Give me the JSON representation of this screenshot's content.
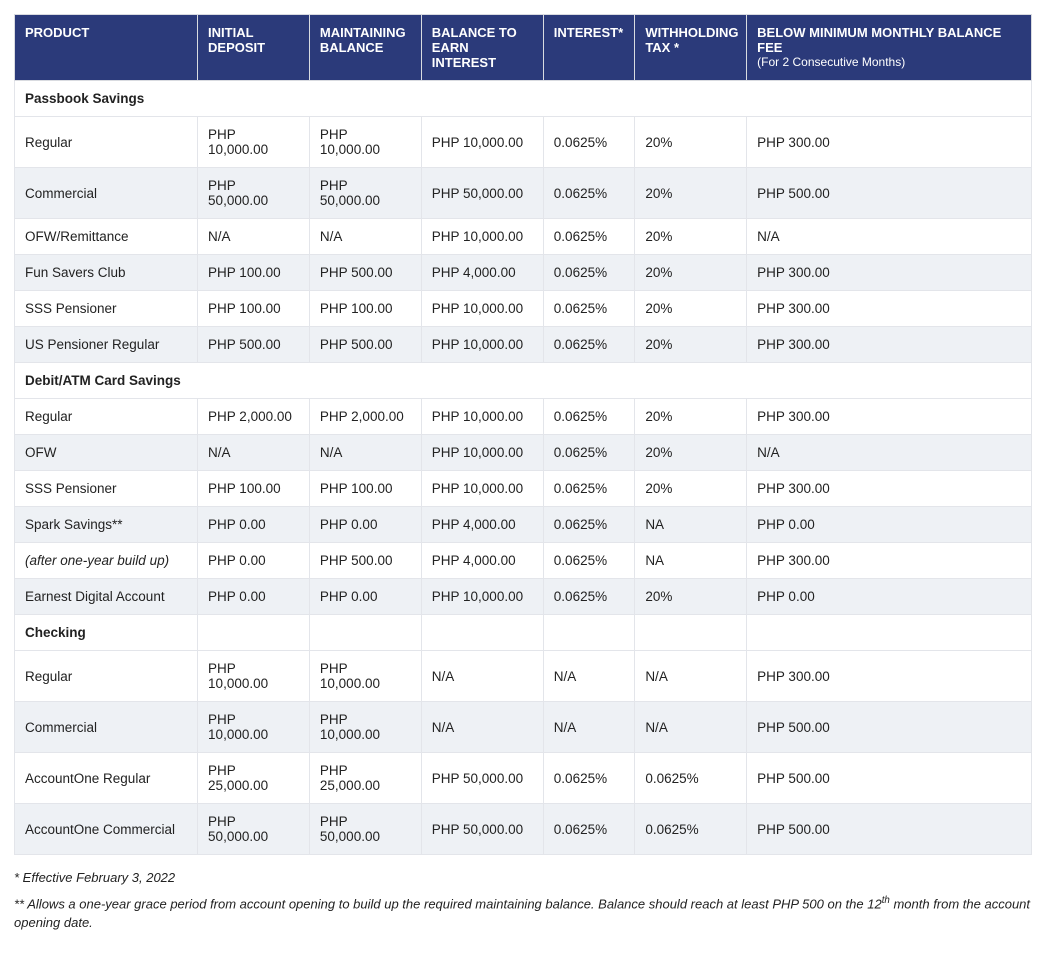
{
  "table": {
    "columns": [
      {
        "label": "PRODUCT",
        "sub": "",
        "width": "18%"
      },
      {
        "label": "INITIAL DEPOSIT",
        "sub": "",
        "width": "11%"
      },
      {
        "label": "MAINTAINING BALANCE",
        "sub": "",
        "width": "11%"
      },
      {
        "label": "BALANCE TO EARN INTEREST",
        "sub": "",
        "width": "12%"
      },
      {
        "label": "INTEREST*",
        "sub": "",
        "width": "9%"
      },
      {
        "label": "WITHHOLDING TAX *",
        "sub": "",
        "width": "11%"
      },
      {
        "label": "BELOW MINIMUM MONTHLY BALANCE FEE",
        "sub": "(For 2 Consecutive Months)",
        "width": "28%"
      }
    ],
    "sections": [
      {
        "title": "Passbook Savings",
        "rows": [
          {
            "alt": false,
            "cells": [
              "Regular",
              "PHP 10,000.00",
              "PHP 10,000.00",
              "PHP 10,000.00",
              "0.0625%",
              "20%",
              "PHP 300.00"
            ]
          },
          {
            "alt": true,
            "cells": [
              "Commercial",
              "PHP 50,000.00",
              "PHP 50,000.00",
              "PHP 50,000.00",
              "0.0625%",
              "20%",
              "PHP 500.00"
            ]
          },
          {
            "alt": false,
            "cells": [
              "OFW/Remittance",
              "N/A",
              "N/A",
              "PHP 10,000.00",
              "0.0625%",
              "20%",
              "N/A"
            ]
          },
          {
            "alt": true,
            "cells": [
              "Fun Savers Club",
              "PHP 100.00",
              "PHP 500.00",
              "PHP 4,000.00",
              "0.0625%",
              "20%",
              "PHP 300.00"
            ]
          },
          {
            "alt": false,
            "cells": [
              "SSS Pensioner",
              "PHP 100.00",
              "PHP 100.00",
              "PHP 10,000.00",
              "0.0625%",
              "20%",
              "PHP 300.00"
            ]
          },
          {
            "alt": true,
            "cells": [
              "US Pensioner Regular",
              "PHP 500.00",
              "PHP 500.00",
              "PHP 10,000.00",
              "0.0625%",
              "20%",
              "PHP 300.00"
            ]
          }
        ]
      },
      {
        "title": "Debit/ATM Card Savings",
        "rows": [
          {
            "alt": false,
            "cells": [
              "Regular",
              "PHP 2,000.00",
              "PHP 2,000.00",
              "PHP 10,000.00",
              "0.0625%",
              "20%",
              "PHP 300.00"
            ]
          },
          {
            "alt": true,
            "cells": [
              "OFW",
              "N/A",
              "N/A",
              "PHP 10,000.00",
              "0.0625%",
              "20%",
              "N/A"
            ]
          },
          {
            "alt": false,
            "cells": [
              "SSS Pensioner",
              "PHP 100.00",
              "PHP 100.00",
              "PHP 10,000.00",
              "0.0625%",
              "20%",
              "PHP 300.00"
            ]
          },
          {
            "alt": true,
            "cells": [
              "Spark Savings**",
              "PHP 0.00",
              "PHP 0.00",
              "PHP 4,000.00",
              "0.0625%",
              "NA",
              "PHP 0.00"
            ]
          },
          {
            "alt": false,
            "italic": true,
            "cells": [
              "(after one-year build up)",
              "PHP 0.00",
              "PHP 500.00",
              "PHP 4,000.00",
              "0.0625%",
              "NA",
              "PHP 300.00"
            ]
          },
          {
            "alt": true,
            "cells": [
              "Earnest Digital Account",
              "PHP 0.00",
              "PHP 0.00",
              "PHP 10,000.00",
              "0.0625%",
              "20%",
              "PHP 0.00"
            ]
          }
        ]
      },
      {
        "title": "Checking",
        "titleEmptyCells": true,
        "rows": [
          {
            "alt": false,
            "cells": [
              "Regular",
              "PHP 10,000.00",
              "PHP 10,000.00",
              "N/A",
              "N/A",
              "N/A",
              "PHP 300.00"
            ]
          },
          {
            "alt": true,
            "cells": [
              "Commercial",
              "PHP 10,000.00",
              "PHP 10,000.00",
              "N/A",
              "N/A",
              "N/A",
              "PHP 500.00"
            ]
          },
          {
            "alt": false,
            "cells": [
              "AccountOne Regular",
              "PHP 25,000.00",
              "PHP 25,000.00",
              "PHP 50,000.00",
              "0.0625%",
              "0.0625%",
              "PHP 500.00"
            ]
          },
          {
            "alt": true,
            "cells": [
              "AccountOne Commercial",
              "PHP 50,000.00",
              "PHP 50,000.00",
              "PHP 50,000.00",
              "0.0625%",
              "0.0625%",
              "PHP 500.00"
            ]
          }
        ]
      }
    ]
  },
  "notes": {
    "line1": "* Effective February 3, 2022",
    "line2_pre": "** Allows a one-year grace period from account opening to build up the required maintaining balance. Balance should reach at least PHP 500 on the 12",
    "line2_sup": "th",
    "line2_post": " month from the account opening date."
  },
  "colors": {
    "header_bg": "#2b3a7a",
    "header_fg": "#ffffff",
    "row_alt_bg": "#eef1f5",
    "border": "#e3e5ea"
  }
}
